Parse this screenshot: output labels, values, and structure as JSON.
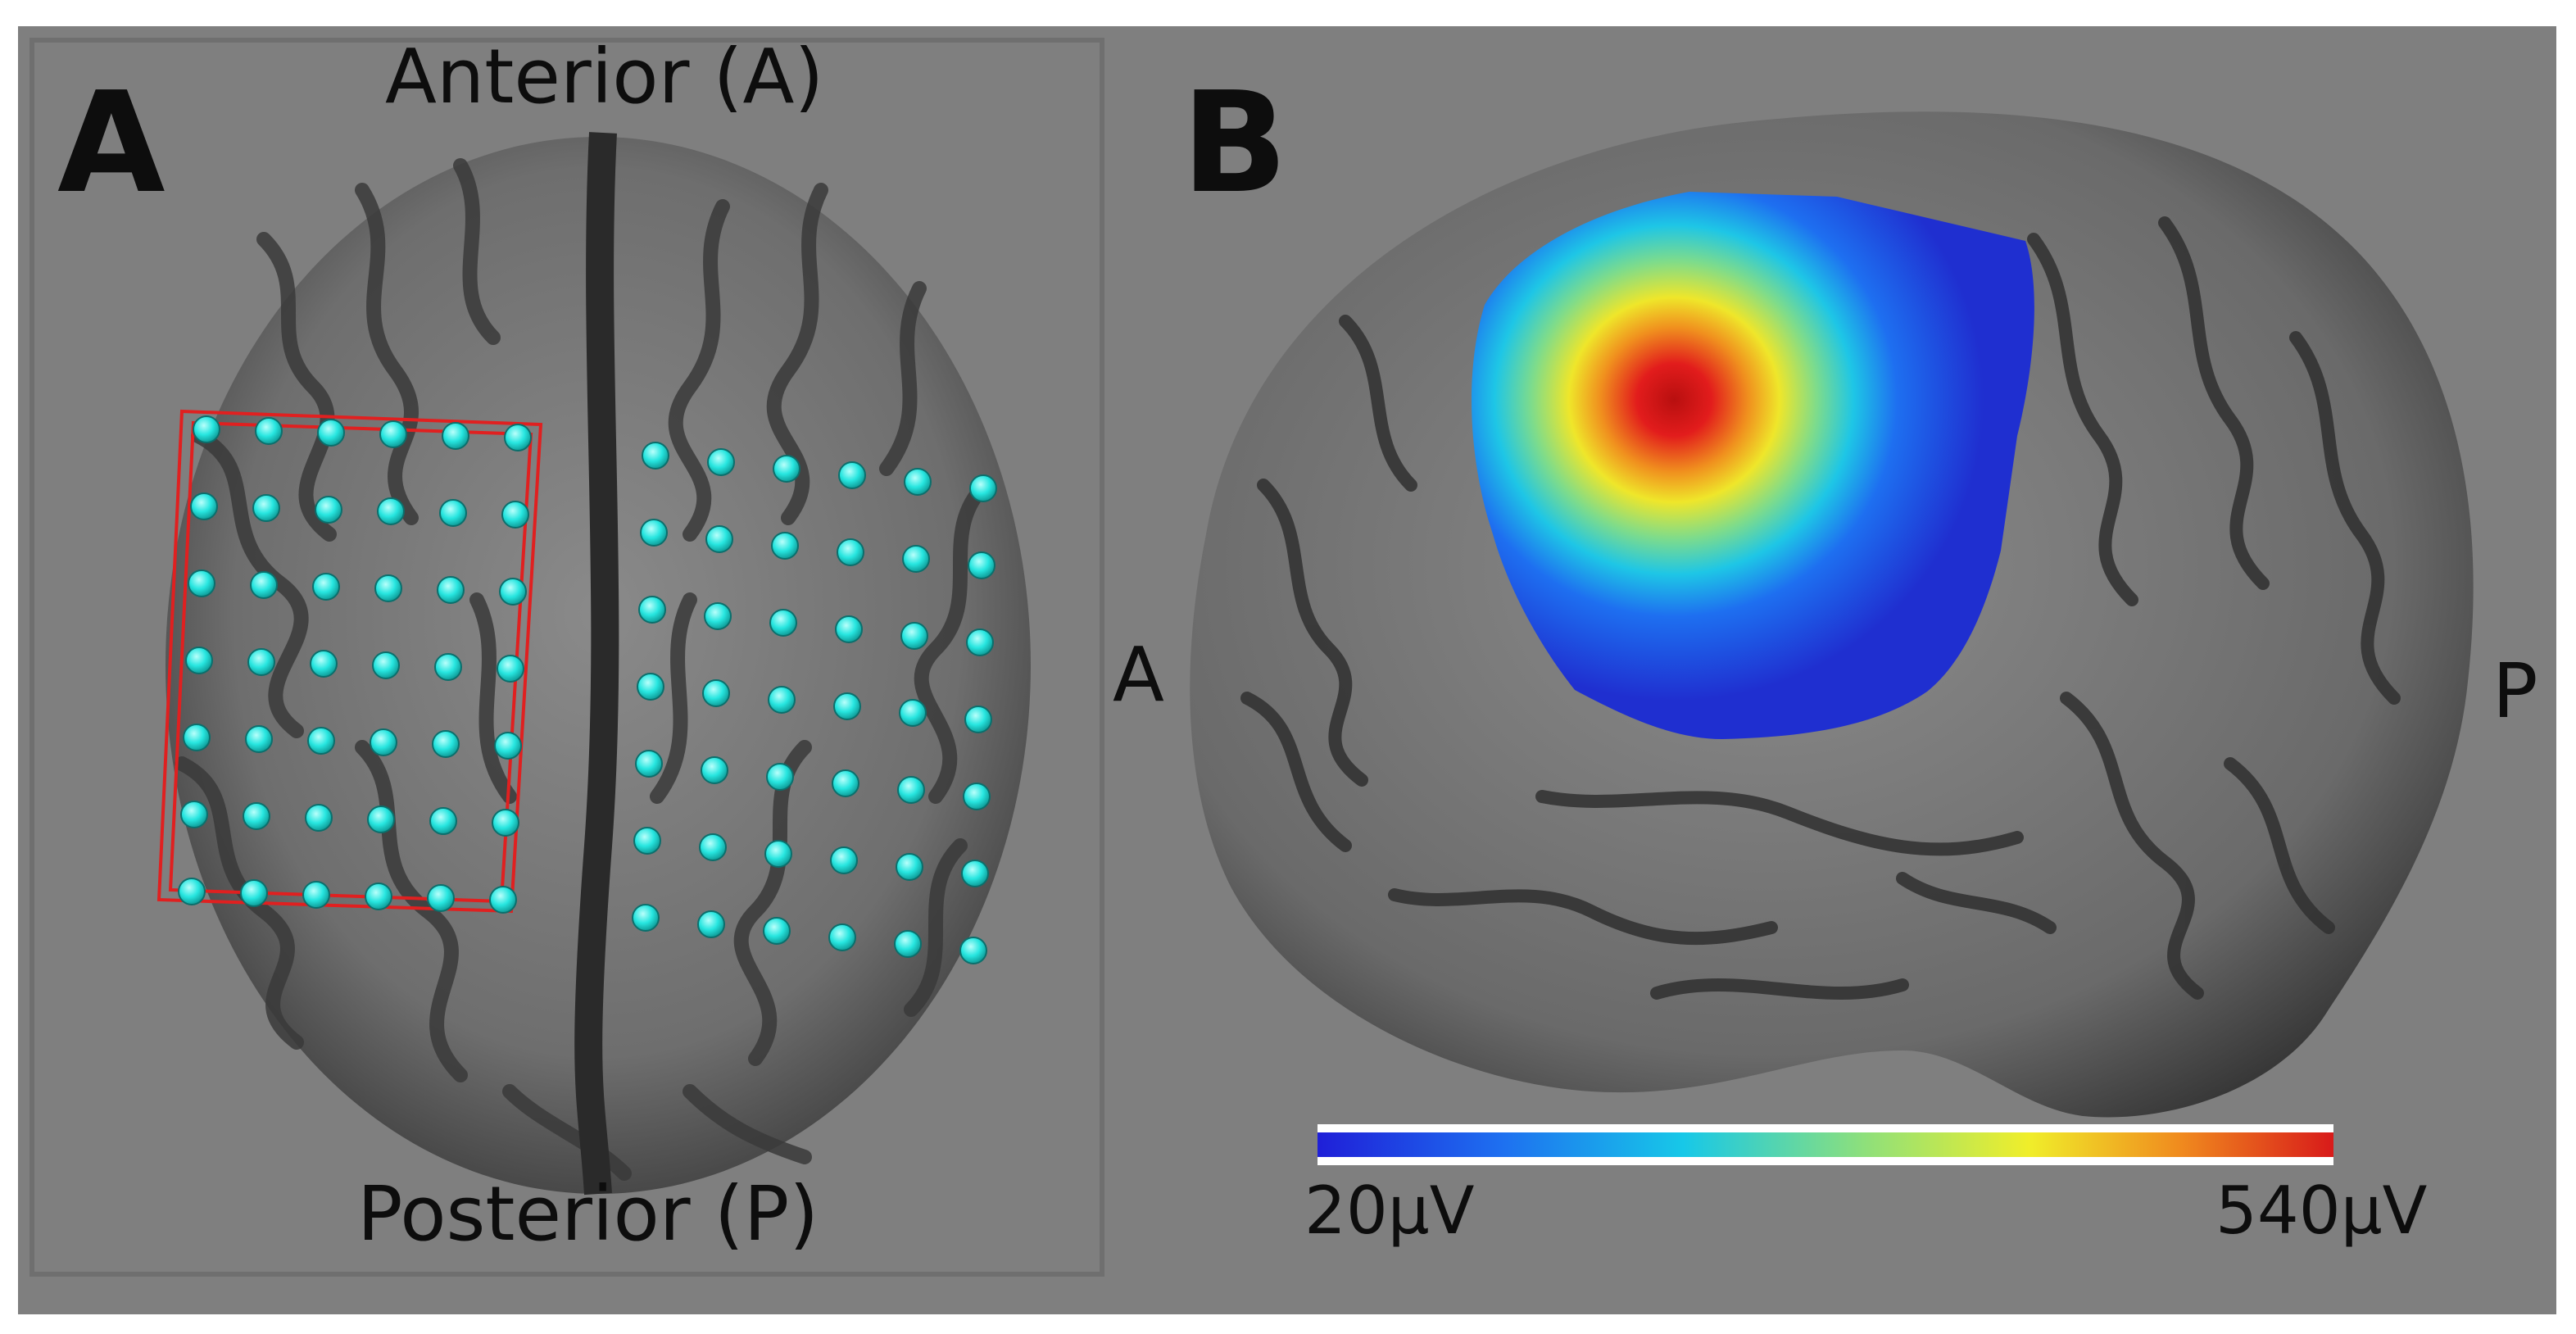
{
  "panel_a": {
    "letter": "A",
    "top_label": "Anterior (A)",
    "bottom_label": "Posterior (P)"
  },
  "panel_b": {
    "letter": "B",
    "left_label": "A",
    "right_label": "P",
    "colorbar": {
      "min_label": "20µV",
      "max_label": "540µV",
      "colors": [
        "#1f1fd8",
        "#1e6ff0",
        "#17c8e8",
        "#8fe07a",
        "#f0ee2a",
        "#f08a1e",
        "#d81a1a"
      ]
    }
  },
  "colors": {
    "background": "#7f7f7f",
    "electrode": "#27e6e0",
    "grid_outline": "#e02020"
  }
}
